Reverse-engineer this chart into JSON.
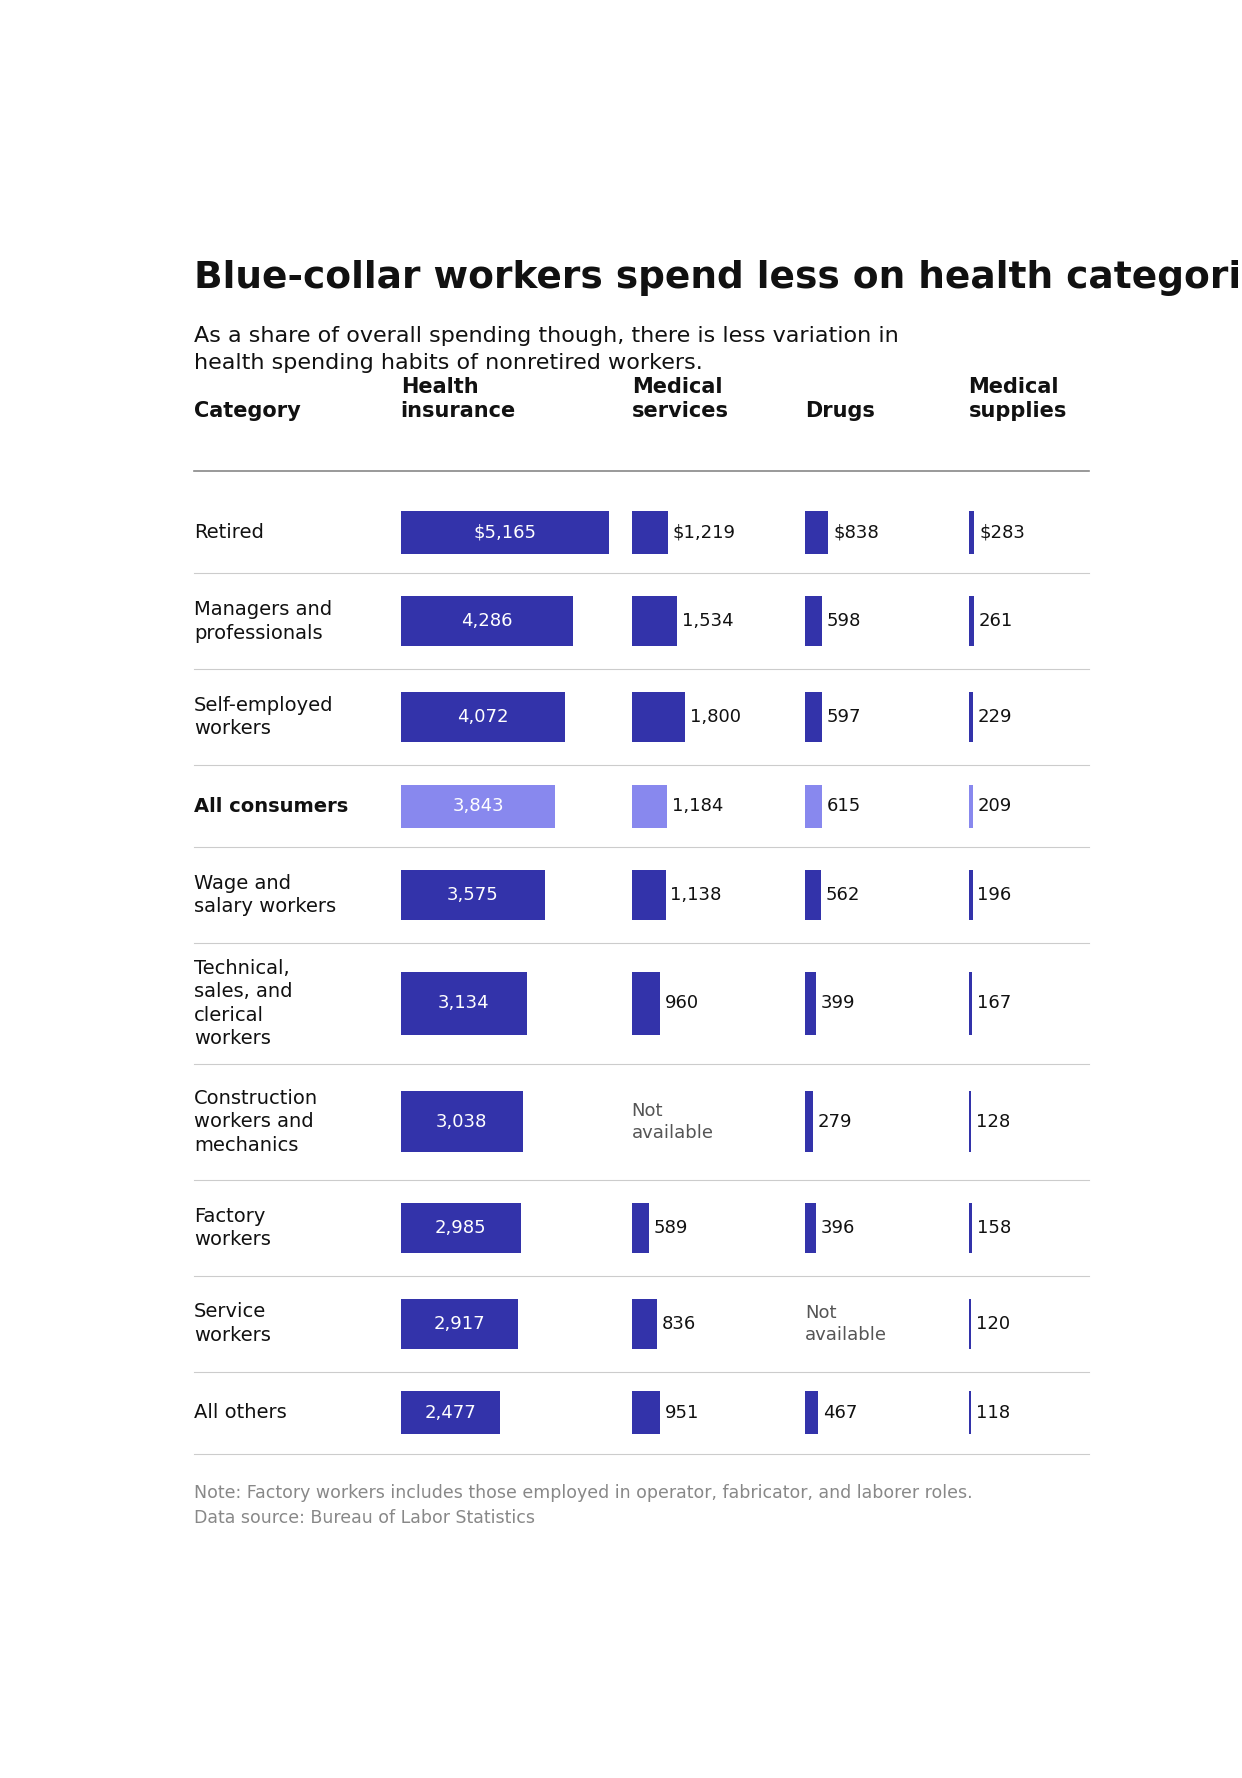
{
  "title": "Blue-collar workers spend less on health categories",
  "subtitle": "As a share of overall spending though, there is less variation in\nhealth spending habits of nonretired workers.",
  "col_headers": [
    "Category",
    "Health\ninsurance",
    "Medical\nservices",
    "Drugs",
    "Medical\nsupplies"
  ],
  "note": "Note: Factory workers includes those employed in operator, fabricator, and laborer roles.\nData source: Bureau of Labor Statistics",
  "rows": [
    {
      "label": "Retired",
      "bold": false,
      "highlight": false,
      "values": [
        5165,
        1219,
        838,
        283
      ],
      "display": [
        "$5,165",
        "$1,219",
        "$838",
        "$283"
      ],
      "na": [
        false,
        false,
        false,
        false
      ]
    },
    {
      "label": "Managers and\nprofessionals",
      "bold": false,
      "highlight": false,
      "values": [
        4286,
        1534,
        598,
        261
      ],
      "display": [
        "4,286",
        "1,534",
        "598",
        "261"
      ],
      "na": [
        false,
        false,
        false,
        false
      ]
    },
    {
      "label": "Self-employed\nworkers",
      "bold": false,
      "highlight": false,
      "values": [
        4072,
        1800,
        597,
        229
      ],
      "display": [
        "4,072",
        "1,800",
        "597",
        "229"
      ],
      "na": [
        false,
        false,
        false,
        false
      ]
    },
    {
      "label": "All consumers",
      "bold": true,
      "highlight": true,
      "values": [
        3843,
        1184,
        615,
        209
      ],
      "display": [
        "3,843",
        "1,184",
        "615",
        "209"
      ],
      "na": [
        false,
        false,
        false,
        false
      ]
    },
    {
      "label": "Wage and\nsalary workers",
      "bold": false,
      "highlight": false,
      "values": [
        3575,
        1138,
        562,
        196
      ],
      "display": [
        "3,575",
        "1,138",
        "562",
        "196"
      ],
      "na": [
        false,
        false,
        false,
        false
      ]
    },
    {
      "label": "Technical,\nsales, and\nclerical\nworkers",
      "bold": false,
      "highlight": false,
      "values": [
        3134,
        960,
        399,
        167
      ],
      "display": [
        "3,134",
        "960",
        "399",
        "167"
      ],
      "na": [
        false,
        false,
        false,
        false
      ]
    },
    {
      "label": "Construction\nworkers and\nmechanics",
      "bold": false,
      "highlight": false,
      "values": [
        3038,
        0,
        279,
        128
      ],
      "display": [
        "3,038",
        "Not\navailable",
        "279",
        "128"
      ],
      "na": [
        false,
        true,
        false,
        false
      ]
    },
    {
      "label": "Factory\nworkers",
      "bold": false,
      "highlight": false,
      "values": [
        2985,
        589,
        396,
        158
      ],
      "display": [
        "2,985",
        "589",
        "396",
        "158"
      ],
      "na": [
        false,
        false,
        false,
        false
      ]
    },
    {
      "label": "Service\nworkers",
      "bold": false,
      "highlight": false,
      "values": [
        2917,
        836,
        0,
        120
      ],
      "display": [
        "2,917",
        "836",
        "Not\navailable",
        "120"
      ],
      "na": [
        false,
        false,
        true,
        false
      ]
    },
    {
      "label": "All others",
      "bold": false,
      "highlight": false,
      "values": [
        2477,
        951,
        467,
        118
      ],
      "display": [
        "2,477",
        "951",
        "467",
        "118"
      ],
      "na": [
        false,
        false,
        false,
        false
      ]
    }
  ],
  "bar_max": 5500,
  "col1_bar_color": "#3333aa",
  "col1_bar_color_highlight": "#8888ee",
  "col234_bar_color": "#3333aa",
  "col234_bar_color_highlight": "#8888ee",
  "background_color": "#ffffff"
}
